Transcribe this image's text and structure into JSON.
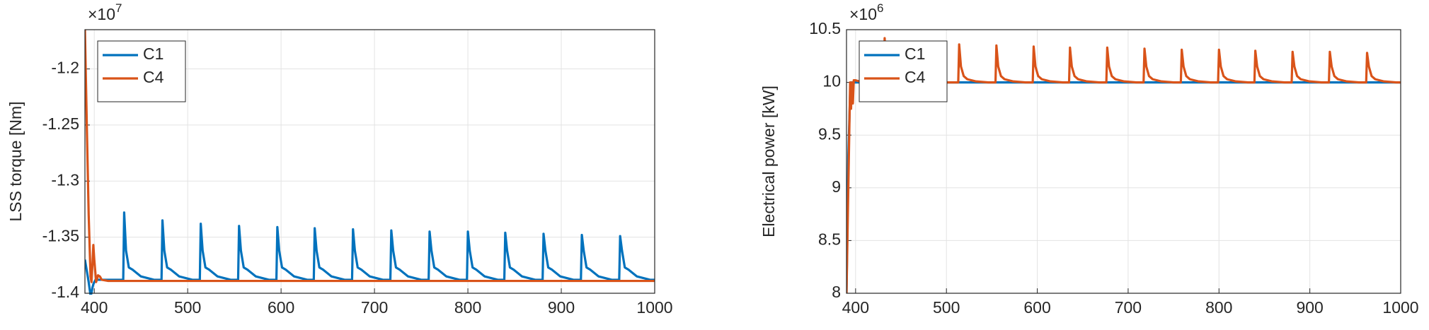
{
  "chart_data": [
    {
      "type": "line",
      "ylabel": "LSS torque [Nm]",
      "y_scale_base": "×10",
      "y_scale_exponent": "7",
      "xlim": [
        390,
        1000
      ],
      "xticks": [
        400,
        500,
        600,
        700,
        800,
        900,
        1000
      ],
      "ylim": [
        -1.4,
        -1.165
      ],
      "yticks": [
        -1.4,
        -1.35,
        -1.3,
        -1.25,
        -1.2
      ],
      "grid": true,
      "legend": "upper left",
      "x": [
        390,
        392,
        394,
        396,
        397,
        398,
        399,
        400,
        402,
        404,
        406,
        408,
        415,
        425,
        431,
        432,
        434,
        437,
        441,
        450,
        464,
        472,
        473,
        475,
        478,
        482,
        491,
        505,
        513,
        514,
        516,
        519,
        523,
        532,
        546,
        554,
        555,
        557,
        560,
        564,
        573,
        587,
        595,
        596,
        598,
        601,
        605,
        614,
        628,
        635,
        636,
        638,
        641,
        645,
        654,
        668,
        676,
        677,
        679,
        682,
        686,
        695,
        709,
        717,
        718,
        720,
        723,
        727,
        736,
        750,
        758,
        759,
        761,
        764,
        768,
        777,
        791,
        799,
        800,
        802,
        805,
        809,
        818,
        832,
        839,
        840,
        842,
        845,
        849,
        858,
        872,
        880,
        881,
        883,
        886,
        890,
        899,
        913,
        921,
        922,
        924,
        927,
        931,
        940,
        954,
        962,
        963,
        965,
        968,
        972,
        981,
        995,
        1000
      ],
      "series": [
        {
          "name": "C1",
          "color": "#0072BD",
          "values": [
            -1.37,
            -1.38,
            -1.39,
            -1.402,
            -1.4,
            -1.395,
            -1.392,
            -1.39,
            -1.387,
            -1.388,
            -1.388,
            -1.388,
            -1.388,
            -1.388,
            -1.388,
            -1.328,
            -1.362,
            -1.377,
            -1.379,
            -1.385,
            -1.388,
            -1.388,
            -1.335,
            -1.362,
            -1.377,
            -1.379,
            -1.385,
            -1.388,
            -1.388,
            -1.338,
            -1.362,
            -1.377,
            -1.379,
            -1.385,
            -1.388,
            -1.388,
            -1.34,
            -1.362,
            -1.377,
            -1.379,
            -1.385,
            -1.388,
            -1.388,
            -1.341,
            -1.362,
            -1.377,
            -1.379,
            -1.385,
            -1.388,
            -1.388,
            -1.342,
            -1.362,
            -1.377,
            -1.379,
            -1.385,
            -1.388,
            -1.388,
            -1.343,
            -1.362,
            -1.377,
            -1.379,
            -1.385,
            -1.388,
            -1.388,
            -1.344,
            -1.362,
            -1.377,
            -1.379,
            -1.385,
            -1.388,
            -1.388,
            -1.345,
            -1.362,
            -1.377,
            -1.379,
            -1.385,
            -1.388,
            -1.388,
            -1.345,
            -1.362,
            -1.377,
            -1.379,
            -1.385,
            -1.388,
            -1.388,
            -1.346,
            -1.362,
            -1.377,
            -1.379,
            -1.385,
            -1.388,
            -1.388,
            -1.347,
            -1.362,
            -1.377,
            -1.379,
            -1.385,
            -1.388,
            -1.388,
            -1.348,
            -1.362,
            -1.377,
            -1.379,
            -1.385,
            -1.388,
            -1.388,
            -1.349,
            -1.362,
            -1.377,
            -1.379,
            -1.385,
            -1.388,
            -1.388
          ]
        },
        {
          "name": "C4",
          "color": "#D95319",
          "values": [
            -1.165,
            -1.25,
            -1.33,
            -1.385,
            -1.39,
            -1.375,
            -1.357,
            -1.37,
            -1.39,
            -1.384,
            -1.385,
            -1.388,
            -1.389,
            -1.389,
            -1.389,
            -1.389,
            -1.389,
            -1.389,
            -1.389,
            -1.389,
            -1.389,
            -1.389,
            -1.389,
            -1.389,
            -1.389,
            -1.389,
            -1.389,
            -1.389,
            -1.389,
            -1.389,
            -1.389,
            -1.389,
            -1.389,
            -1.389,
            -1.389,
            -1.389,
            -1.389,
            -1.389,
            -1.389,
            -1.389,
            -1.389,
            -1.389,
            -1.389,
            -1.389,
            -1.389,
            -1.389,
            -1.389,
            -1.389,
            -1.389,
            -1.389,
            -1.389,
            -1.389,
            -1.389,
            -1.389,
            -1.389,
            -1.389,
            -1.389,
            -1.389,
            -1.389,
            -1.389,
            -1.389,
            -1.389,
            -1.389,
            -1.389,
            -1.389,
            -1.389,
            -1.389,
            -1.389,
            -1.389,
            -1.389,
            -1.389,
            -1.389,
            -1.389,
            -1.389,
            -1.389,
            -1.389,
            -1.389,
            -1.389,
            -1.389,
            -1.389,
            -1.389,
            -1.389,
            -1.389,
            -1.389,
            -1.389,
            -1.389,
            -1.389,
            -1.389,
            -1.389,
            -1.389,
            -1.389,
            -1.389,
            -1.389,
            -1.389,
            -1.389,
            -1.389,
            -1.389,
            -1.389,
            -1.389,
            -1.389,
            -1.389,
            -1.389,
            -1.389,
            -1.389,
            -1.389,
            -1.389,
            -1.389,
            -1.389,
            -1.389,
            -1.389,
            -1.389,
            -1.389,
            -1.389
          ]
        }
      ]
    },
    {
      "type": "line",
      "ylabel": "Electrical power [kW]",
      "y_scale_base": "×10",
      "y_scale_exponent": "6",
      "xlim": [
        390,
        1000
      ],
      "xticks": [
        400,
        500,
        600,
        700,
        800,
        900,
        1000
      ],
      "ylim": [
        8,
        10.5
      ],
      "yticks": [
        8,
        8.5,
        9,
        9.5,
        10,
        10.5
      ],
      "grid": true,
      "legend": "upper left",
      "x": [
        390,
        392,
        394,
        395,
        396,
        397,
        398,
        400,
        404,
        410,
        420,
        430,
        431,
        432,
        434,
        440,
        460,
        480,
        500,
        513,
        514,
        516,
        519,
        523,
        532,
        546,
        554,
        555,
        557,
        560,
        564,
        573,
        587,
        595,
        596,
        598,
        601,
        605,
        614,
        628,
        635,
        636,
        638,
        641,
        645,
        654,
        668,
        676,
        677,
        679,
        682,
        686,
        695,
        709,
        717,
        718,
        720,
        723,
        727,
        736,
        750,
        758,
        759,
        761,
        764,
        768,
        777,
        791,
        799,
        800,
        802,
        805,
        809,
        818,
        832,
        839,
        840,
        842,
        845,
        849,
        858,
        872,
        880,
        881,
        883,
        886,
        890,
        899,
        913,
        921,
        922,
        924,
        927,
        931,
        940,
        954,
        962,
        963,
        965,
        968,
        972,
        981,
        995,
        1000
      ],
      "series": [
        {
          "name": "C1",
          "color": "#0072BD",
          "values": [
            8.0,
            9.3,
            9.9,
            10,
            10,
            10,
            10,
            10,
            10,
            10,
            10,
            10,
            10,
            10,
            10,
            10,
            10,
            10,
            10,
            10,
            10,
            10,
            10,
            10,
            10,
            10,
            10,
            10,
            10,
            10,
            10,
            10,
            10,
            10,
            10,
            10,
            10,
            10,
            10,
            10,
            10,
            10,
            10,
            10,
            10,
            10,
            10,
            10,
            10,
            10,
            10,
            10,
            10,
            10,
            10,
            10,
            10,
            10,
            10,
            10,
            10,
            10,
            10,
            10,
            10,
            10,
            10,
            10,
            10,
            10,
            10,
            10,
            10,
            10,
            10,
            10,
            10,
            10,
            10,
            10,
            10,
            10,
            10,
            10,
            10,
            10,
            10,
            10,
            10,
            10,
            10,
            10,
            10,
            10,
            10,
            10,
            10,
            10,
            10,
            10,
            10,
            10,
            10,
            10
          ]
        },
        {
          "name": "C4",
          "color": "#D95319",
          "values": [
            8.0,
            9.0,
            10.0,
            9.75,
            10.0,
            9.8,
            10.02,
            10.02,
            10.01,
            10,
            10,
            10,
            10,
            10.42,
            10,
            10,
            10,
            10,
            10,
            10,
            10.36,
            10.15,
            10.06,
            10.03,
            10.01,
            10,
            10,
            10.35,
            10.15,
            10.06,
            10.03,
            10.01,
            10,
            10,
            10.34,
            10.15,
            10.06,
            10.03,
            10.01,
            10,
            10,
            10.33,
            10.15,
            10.06,
            10.03,
            10.01,
            10,
            10,
            10.33,
            10.15,
            10.06,
            10.03,
            10.01,
            10,
            10,
            10.32,
            10.15,
            10.06,
            10.03,
            10.01,
            10,
            10,
            10.31,
            10.15,
            10.06,
            10.03,
            10.01,
            10,
            10,
            10.31,
            10.15,
            10.06,
            10.03,
            10.01,
            10,
            10,
            10.3,
            10.15,
            10.06,
            10.03,
            10.01,
            10,
            10,
            10.29,
            10.15,
            10.06,
            10.03,
            10.01,
            10,
            10,
            10.29,
            10.15,
            10.06,
            10.03,
            10.01,
            10,
            10,
            10.28,
            10.15,
            10.06,
            10.03,
            10.01,
            10,
            10
          ]
        }
      ]
    }
  ]
}
